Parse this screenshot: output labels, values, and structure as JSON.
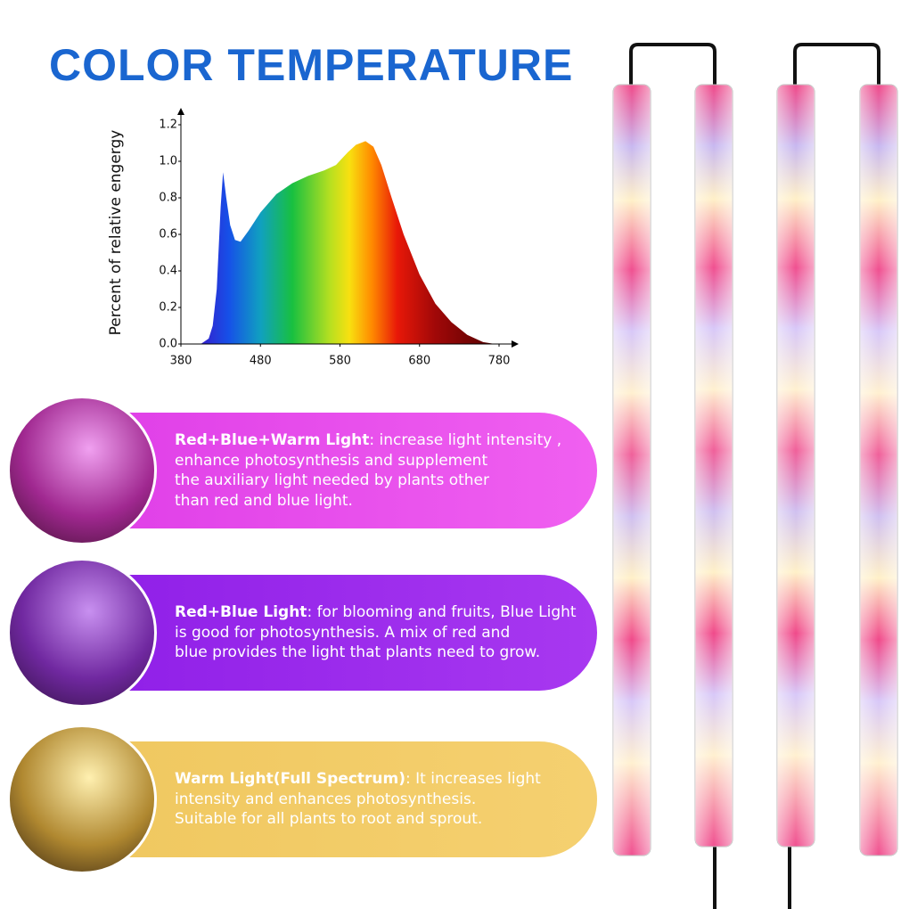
{
  "title": "COLOR TEMPERATURE",
  "chart_data": {
    "type": "area",
    "y_label": "Percent of relative engergy",
    "x": [
      405,
      415,
      420,
      425,
      430,
      433,
      437,
      442,
      448,
      455,
      465,
      480,
      500,
      520,
      540,
      560,
      575,
      590,
      600,
      612,
      622,
      632,
      645,
      660,
      680,
      700,
      720,
      740,
      760,
      775
    ],
    "values": [
      0,
      0.03,
      0.1,
      0.3,
      0.75,
      0.94,
      0.8,
      0.65,
      0.57,
      0.56,
      0.62,
      0.72,
      0.82,
      0.88,
      0.92,
      0.95,
      0.98,
      1.05,
      1.09,
      1.11,
      1.08,
      0.98,
      0.8,
      0.6,
      0.38,
      0.22,
      0.12,
      0.05,
      0.01,
      0
    ],
    "xlim": [
      380,
      780
    ],
    "xticks": [
      380,
      480,
      580,
      680,
      780
    ],
    "ylim": [
      0,
      1.2
    ],
    "yticks": [
      {
        "value": 0,
        "label": "0.0"
      },
      0.2,
      0.4,
      0.6,
      0.8,
      {
        "value": 1,
        "label": "1.0"
      },
      1.2
    ]
  },
  "panels": [
    {
      "heading": "Red+Blue+Warm Light",
      "lines": [
        ": increase light intensity ,",
        "enhance photosynthesis and supplement",
        "the auxiliary light needed by plants other",
        "than red and blue light."
      ]
    },
    {
      "heading": "Red+Blue Light",
      "lines": [
        ": for blooming and fruits, Blue Light",
        "is good for photosynthesis. A mix of red and",
        "blue provides the light that plants need to grow."
      ]
    },
    {
      "heading": "Warm Light(Full Spectrum)",
      "lines": [
        ": It increases light",
        "intensity and enhances photosynthesis.",
        "Suitable for all plants to root and sprout."
      ]
    }
  ]
}
